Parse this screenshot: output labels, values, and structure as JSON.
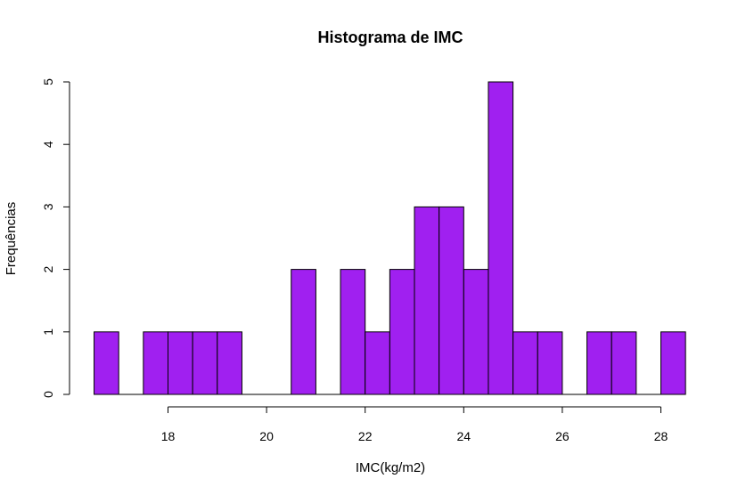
{
  "chart_data": {
    "type": "bar",
    "subtype": "histogram",
    "title": "Histograma de IMC",
    "xlabel": "IMC(kg/m2)",
    "ylabel": "Frequências",
    "bin_width": 0.5,
    "bin_starts": [
      16.5,
      17.0,
      17.5,
      18.0,
      18.5,
      19.0,
      19.5,
      20.0,
      20.5,
      21.0,
      21.5,
      22.0,
      22.5,
      23.0,
      23.5,
      24.0,
      24.5,
      25.0,
      25.5,
      26.0,
      26.5,
      27.0,
      27.5,
      28.0
    ],
    "values": [
      1,
      0,
      1,
      1,
      1,
      1,
      0,
      0,
      2,
      0,
      2,
      1,
      2,
      3,
      3,
      2,
      5,
      1,
      1,
      0,
      1,
      1,
      0,
      1
    ],
    "xlim": [
      16.5,
      28.5
    ],
    "ylim": [
      0,
      5
    ],
    "x_ticks": [
      18,
      20,
      22,
      24,
      26,
      28
    ],
    "y_ticks": [
      0,
      1,
      2,
      3,
      4,
      5
    ],
    "bar_color": "#A020F0",
    "edge_color": "#000000",
    "grid": false
  }
}
